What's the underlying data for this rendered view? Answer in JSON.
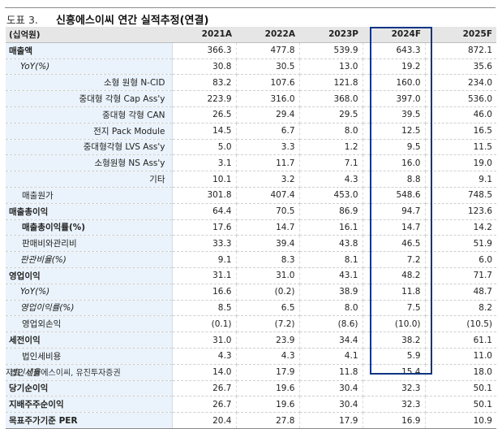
{
  "title": {
    "figure_label": "도표 3.",
    "text": "신흥에스이씨 연간 실적추정(연결)"
  },
  "table": {
    "unit_label": "(십억원)",
    "columns": [
      "2021A",
      "2022A",
      "2023P",
      "2024F",
      "2025F"
    ],
    "highlighted_column": "2024F",
    "highlight_color": "#0e3584",
    "rows": [
      {
        "label": "매출액",
        "style": "bold",
        "values": [
          "366.3",
          "477.8",
          "539.9",
          "643.3",
          "872.1"
        ]
      },
      {
        "label": "YoY(%)",
        "style": "italic-indent",
        "values": [
          "30.8",
          "30.5",
          "13.0",
          "19.2",
          "35.6"
        ]
      },
      {
        "label": "소형 원형 N-CID",
        "style": "right",
        "values": [
          "83.2",
          "107.6",
          "121.8",
          "160.0",
          "234.0"
        ]
      },
      {
        "label": "중대형 각형 Cap Ass'y",
        "style": "right",
        "values": [
          "223.9",
          "316.0",
          "368.0",
          "397.0",
          "536.0"
        ]
      },
      {
        "label": "중대형 각형 CAN",
        "style": "right",
        "values": [
          "26.5",
          "29.4",
          "29.5",
          "39.5",
          "46.0"
        ]
      },
      {
        "label": "전지 Pack Module",
        "style": "right",
        "values": [
          "14.5",
          "6.7",
          "8.0",
          "12.5",
          "16.5"
        ]
      },
      {
        "label": "중대형각형 LVS Ass'y",
        "style": "right",
        "values": [
          "5.0",
          "3.3",
          "1.2",
          "9.5",
          "11.5"
        ]
      },
      {
        "label": "소형원형 NS Ass'y",
        "style": "right",
        "values": [
          "3.1",
          "11.7",
          "7.1",
          "16.0",
          "19.0"
        ]
      },
      {
        "label": "기타",
        "style": "right",
        "values": [
          "10.1",
          "3.2",
          "4.3",
          "8.8",
          "9.1"
        ]
      },
      {
        "label": "매출원가",
        "style": "indent",
        "values": [
          "301.8",
          "407.4",
          "453.0",
          "548.6",
          "748.5"
        ]
      },
      {
        "label": "매출총이익",
        "style": "bold",
        "values": [
          "64.4",
          "70.5",
          "86.9",
          "94.7",
          "123.6"
        ]
      },
      {
        "label": "매출총이익률(%)",
        "style": "bold-indent",
        "values": [
          "17.6",
          "14.7",
          "16.1",
          "14.7",
          "14.2"
        ]
      },
      {
        "label": "판매비와관리비",
        "style": "indent",
        "values": [
          "33.3",
          "39.4",
          "43.8",
          "46.5",
          "51.9"
        ]
      },
      {
        "label": "판관비율(%)",
        "style": "italic-indent",
        "values": [
          "9.1",
          "8.3",
          "8.1",
          "7.2",
          "6.0"
        ]
      },
      {
        "label": "영업이익",
        "style": "bold",
        "values": [
          "31.1",
          "31.0",
          "43.1",
          "48.2",
          "71.7"
        ]
      },
      {
        "label": "YoY(%)",
        "style": "italic-indent",
        "values": [
          "16.6",
          "(0.2)",
          "38.9",
          "11.8",
          "48.7"
        ]
      },
      {
        "label": "영업이익률(%)",
        "style": "italic-indent",
        "values": [
          "8.5",
          "6.5",
          "8.0",
          "7.5",
          "8.2"
        ]
      },
      {
        "label": "영업외손익",
        "style": "indent",
        "values": [
          "(0.1)",
          "(7.2)",
          "(8.6)",
          "(10.0)",
          "(10.5)"
        ]
      },
      {
        "label": "세전이익",
        "style": "bold",
        "values": [
          "31.0",
          "23.9",
          "34.4",
          "38.2",
          "61.1"
        ]
      },
      {
        "label": "법인세비용",
        "style": "indent",
        "values": [
          "4.3",
          "4.3",
          "4.1",
          "5.9",
          "11.0"
        ]
      },
      {
        "label": "법인세율",
        "style": "italic",
        "values": [
          "14.0",
          "17.9",
          "11.8",
          "15.4",
          "18.0"
        ]
      },
      {
        "label": "당기순이익",
        "style": "bold",
        "values": [
          "26.7",
          "19.6",
          "30.4",
          "32.3",
          "50.1"
        ]
      },
      {
        "label": "지배주주순이익",
        "style": "bold",
        "values": [
          "26.7",
          "19.6",
          "30.4",
          "32.3",
          "50.1"
        ]
      },
      {
        "label": "목표주가기준 PER",
        "style": "bold",
        "values": [
          "20.4",
          "27.8",
          "17.9",
          "16.9",
          "10.9"
        ]
      }
    ]
  },
  "source": "자료: 신흥에스이씨, 유진투자증권"
}
